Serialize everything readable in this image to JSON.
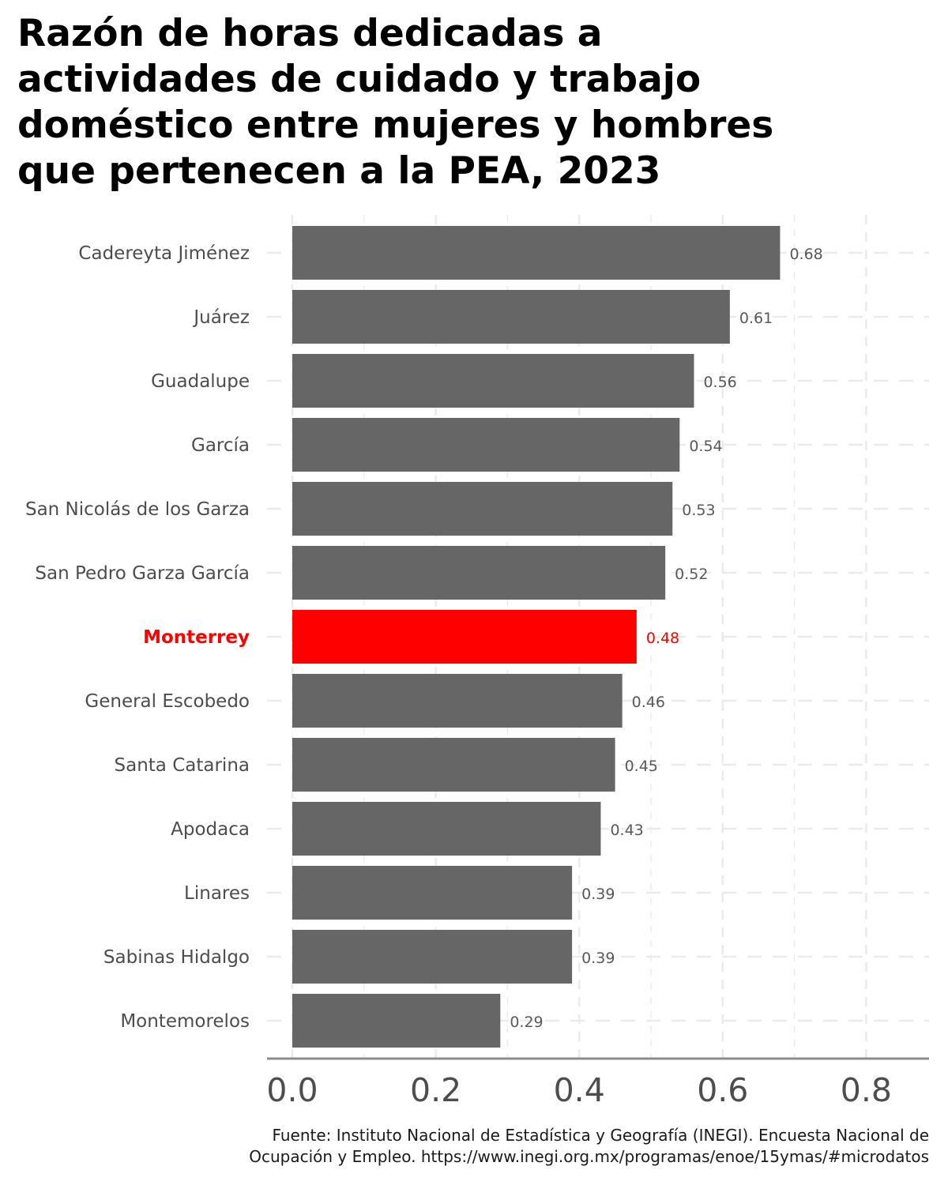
{
  "chart_data": {
    "type": "bar",
    "orientation": "horizontal",
    "title_lines": [
      "Razón de horas dedicadas a",
      "actividades de cuidado y trabajo",
      "doméstico entre mujeres y hombres",
      "que pertenecen a la PEA, 2023"
    ],
    "categories": [
      "Cadereyta Jiménez",
      "Juárez",
      "Guadalupe",
      "García",
      "San Nicolás de los Garza",
      "San Pedro Garza García",
      "Monterrey",
      "General Escobedo",
      "Santa Catarina",
      "Apodaca",
      "Linares",
      "Sabinas Hidalgo",
      "Montemorelos"
    ],
    "values": [
      0.68,
      0.61,
      0.56,
      0.54,
      0.53,
      0.52,
      0.48,
      0.46,
      0.45,
      0.43,
      0.39,
      0.39,
      0.29
    ],
    "value_labels": [
      "0.68",
      "0.61",
      "0.56",
      "0.54",
      "0.53",
      "0.52",
      "0.48",
      "0.46",
      "0.45",
      "0.43",
      "0.39",
      "0.39",
      "0.29"
    ],
    "highlight": "Monterrey",
    "xlim": [
      0,
      0.8
    ],
    "x_ticks": [
      0.0,
      0.2,
      0.4,
      0.6,
      0.8
    ],
    "x_tick_labels": [
      "0.0",
      "0.2",
      "0.4",
      "0.6",
      "0.8"
    ],
    "xlabel": "",
    "ylabel": "",
    "grid": "dashed",
    "legend": "none",
    "colors": {
      "bar": "#666666",
      "highlight": "#ff0000",
      "grid": "#ebebeb",
      "axis_line": "#8c8c8c",
      "category_text": "#4d4d4d",
      "value_text": "#595959"
    },
    "caption_lines": [
      "Fuente: Instituto Nacional de Estadística y Geografía (INEGI). Encuesta Nacional de",
      "Ocupación y Empleo. https://www.inegi.org.mx/programas/enoe/15ymas/#microdatos"
    ]
  }
}
